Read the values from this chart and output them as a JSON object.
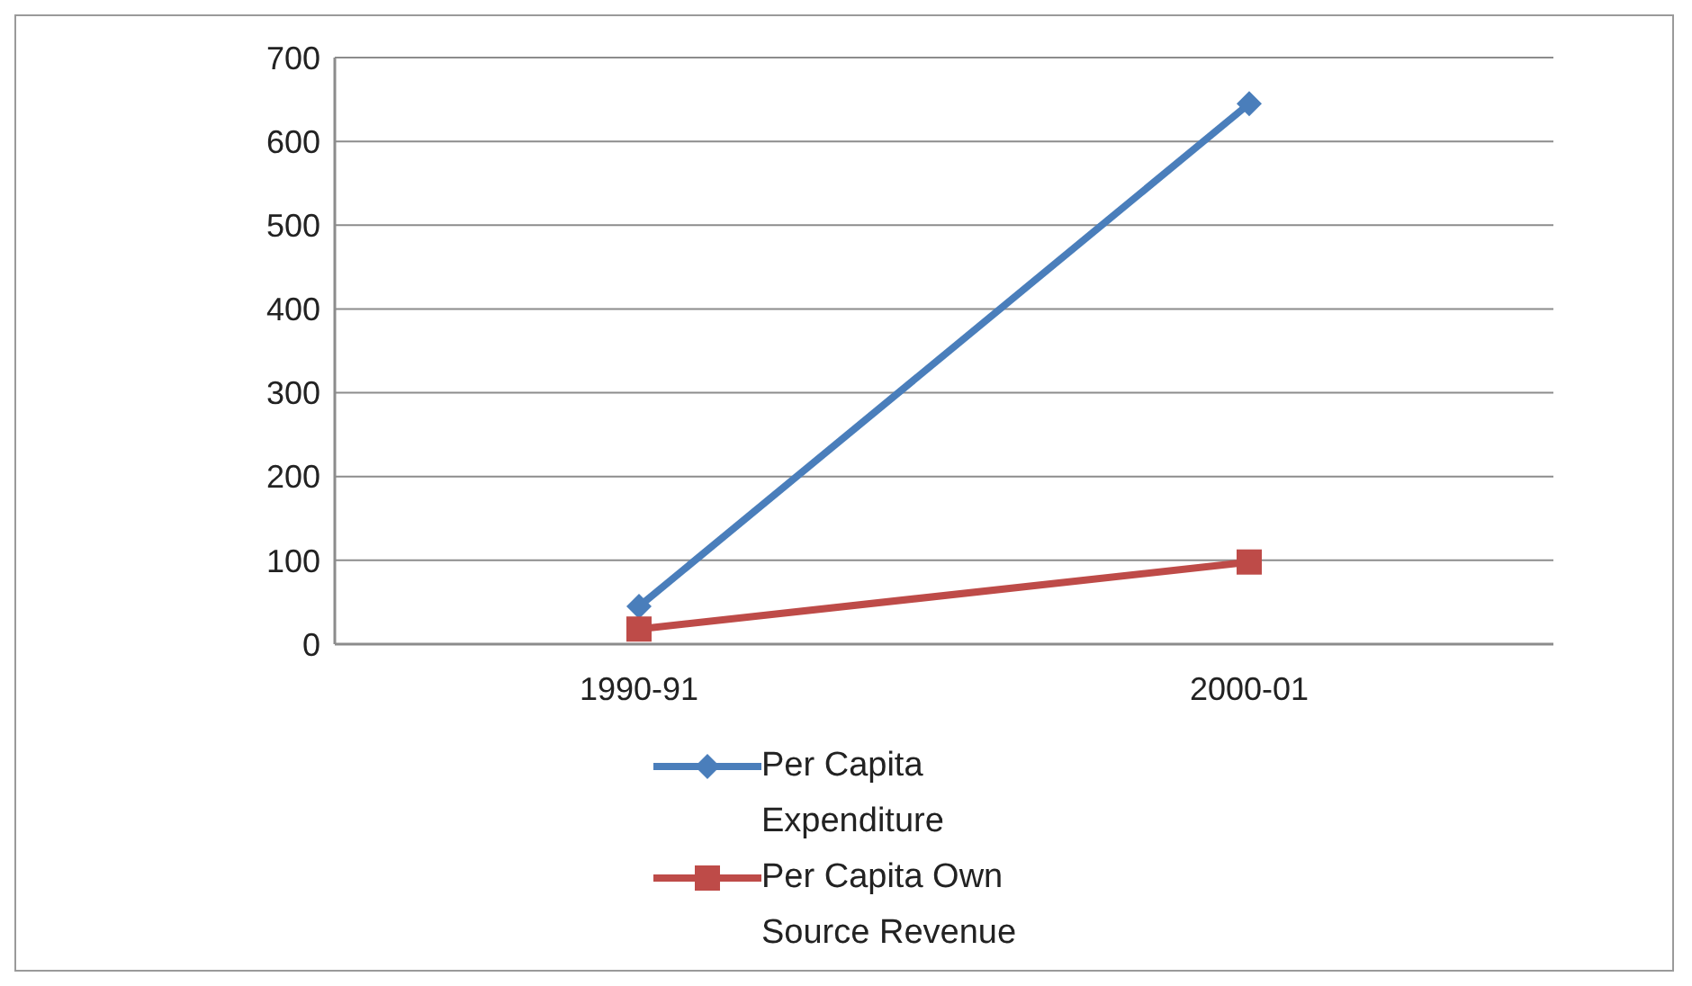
{
  "chart_data": {
    "type": "line",
    "categories": [
      "1990-91",
      "2000-01"
    ],
    "series": [
      {
        "name": "Per Capita Expenditure",
        "color": "#4a7ebb",
        "values": [
          45,
          645
        ],
        "marker": "diamond"
      },
      {
        "name": "Per Capita Own Source Revenue",
        "color": "#be4b48",
        "values": [
          18,
          98
        ],
        "marker": "square"
      }
    ],
    "ylim": [
      0,
      700
    ],
    "yticks": [
      0,
      100,
      200,
      300,
      400,
      500,
      600,
      700
    ],
    "grid": "y",
    "legend": "bottom"
  }
}
